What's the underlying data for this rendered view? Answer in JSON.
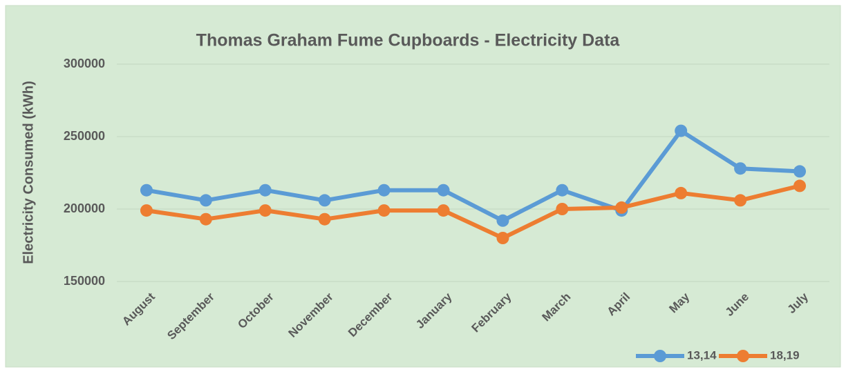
{
  "chart_data": {
    "type": "line",
    "title": "Thomas Graham Fume Cupboards - Electricity Data",
    "y_label": "Electricity Consumed  (kWh)",
    "categories": [
      "August",
      "September",
      "October",
      "November",
      "December",
      "January",
      "February",
      "March",
      "April",
      "May",
      "June",
      "July"
    ],
    "series": [
      {
        "name": "13,14",
        "color": "#5b9bd5",
        "values": [
          213000,
          206000,
          213000,
          206000,
          213000,
          213000,
          192000,
          213000,
          199000,
          254000,
          228000,
          226000
        ]
      },
      {
        "name": "18,19",
        "color": "#ed7d31",
        "values": [
          199000,
          193000,
          199000,
          193000,
          199000,
          199000,
          180000,
          200000,
          201000,
          211000,
          206000,
          216000
        ]
      }
    ],
    "ylim": [
      150000,
      300000
    ],
    "yticks": [
      150000,
      200000,
      250000,
      300000
    ],
    "grid": true,
    "legend": "bottom-right"
  }
}
